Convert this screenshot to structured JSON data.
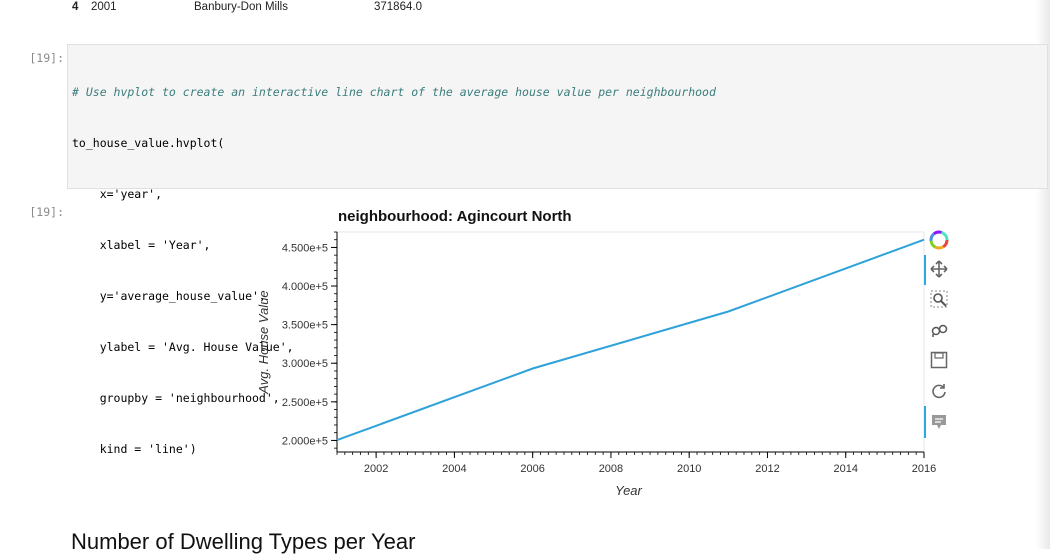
{
  "dataframe_tail": {
    "index": "4",
    "year": "2001",
    "neighbourhood": "Banbury-Don Mills",
    "value": "371864.0"
  },
  "cell": {
    "in_prompt": "[19]:",
    "out_prompt": "[19]:",
    "code_lines": [
      "# Use hvplot to create an interactive line chart of the average house value per neighbourhood",
      "to_house_value.hvplot(",
      "    x='year',",
      "    xlabel = 'Year',",
      "    y='average_house_value',",
      "    ylabel = 'Avg. House Value',",
      "    groupby = 'neighbourhood',",
      "    kind = 'line')"
    ]
  },
  "chart_data": {
    "type": "line",
    "title": "neighbourhood: Agincourt North",
    "xlabel": "Year",
    "ylabel": "Avg. House Value",
    "xlim": [
      2001,
      2016
    ],
    "ylim": [
      185000,
      470000
    ],
    "x_ticks": [
      2002,
      2004,
      2006,
      2008,
      2010,
      2012,
      2014,
      2016
    ],
    "y_ticks": [
      200000,
      250000,
      300000,
      350000,
      400000,
      450000
    ],
    "y_tick_labels": [
      "2.000e+5",
      "2.500e+5",
      "3.000e+5",
      "3.500e+5",
      "4.000e+5",
      "4.500e+5"
    ],
    "grid": false,
    "series": [
      {
        "x": [
          2001,
          2006,
          2011,
          2016
        ],
        "values": [
          200388,
          293141,
          367011,
          460000
        ]
      }
    ],
    "line_color": "#30a2da"
  },
  "toolbar": {
    "tools": [
      "bokeh-logo-icon",
      "pan-icon",
      "box-zoom-icon",
      "wheel-zoom-icon",
      "save-icon",
      "reset-icon",
      "hover-icon"
    ]
  },
  "next_section": {
    "heading": "Number of Dwelling Types per Year"
  }
}
